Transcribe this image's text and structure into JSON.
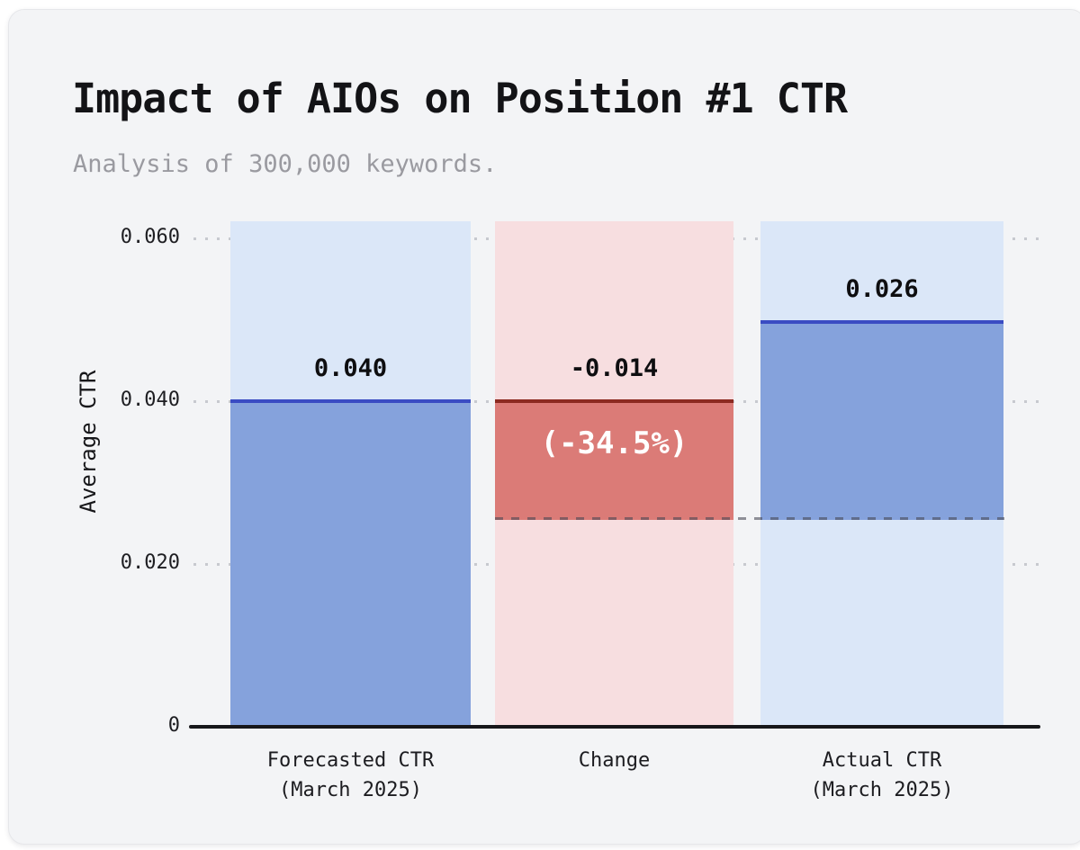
{
  "header": {
    "title": "Impact of AIOs on Position #1 CTR",
    "subtitle": "Analysis of 300,000 keywords."
  },
  "chart_data": {
    "type": "bar",
    "subtype": "waterfall",
    "title": "Impact of AIOs on Position #1 CTR",
    "subtitle": "Analysis of 300,000 keywords.",
    "xlabel": "",
    "ylabel": "Average CTR",
    "categories": [
      "Forecasted CTR (March 2025)",
      "Change",
      "Actual CTR (March 2025)"
    ],
    "values": [
      0.04,
      -0.014,
      0.026
    ],
    "bar_value_labels": [
      "0.040",
      "-0.014",
      "0.026"
    ],
    "change_percent_label": "(-34.5%)",
    "ytick_labels": [
      "0.060",
      "0.040",
      "0.020",
      "0"
    ],
    "ylim": [
      0,
      0.0625
    ],
    "grid": "horizontal dotted at 0.020 intervals",
    "legend": "none",
    "reference_line": {
      "value": 0.026,
      "style": "gray dashed",
      "spans": [
        "Change",
        "Actual CTR (March 2025)"
      ]
    },
    "notes": "Change bar floats from 0.026 to 0.040; each category has a full-height pale background column",
    "colors": {
      "card_background": "#f3f4f6",
      "page_background": "#ffffff",
      "blue_fill": "#85a2dc",
      "blue_light_column": "#dbe7f8",
      "blue_value_line": "#3a4cc3",
      "red_fill": "#db7b77",
      "red_light_column": "#f7dee0",
      "red_value_line": "#8c2a21",
      "axis_line": "#17171a",
      "grid_dots": "#c7c9cf",
      "title_text": "#131316",
      "subtitle_text": "#9a9aa0",
      "percent_text": "#ffffff"
    }
  },
  "x_axis": {
    "labels": [
      {
        "line1": "Forecasted CTR",
        "line2": "(March 2025)"
      },
      {
        "line1": "Change",
        "line2": ""
      },
      {
        "line1": "Actual CTR",
        "line2": "(March 2025)"
      }
    ]
  }
}
